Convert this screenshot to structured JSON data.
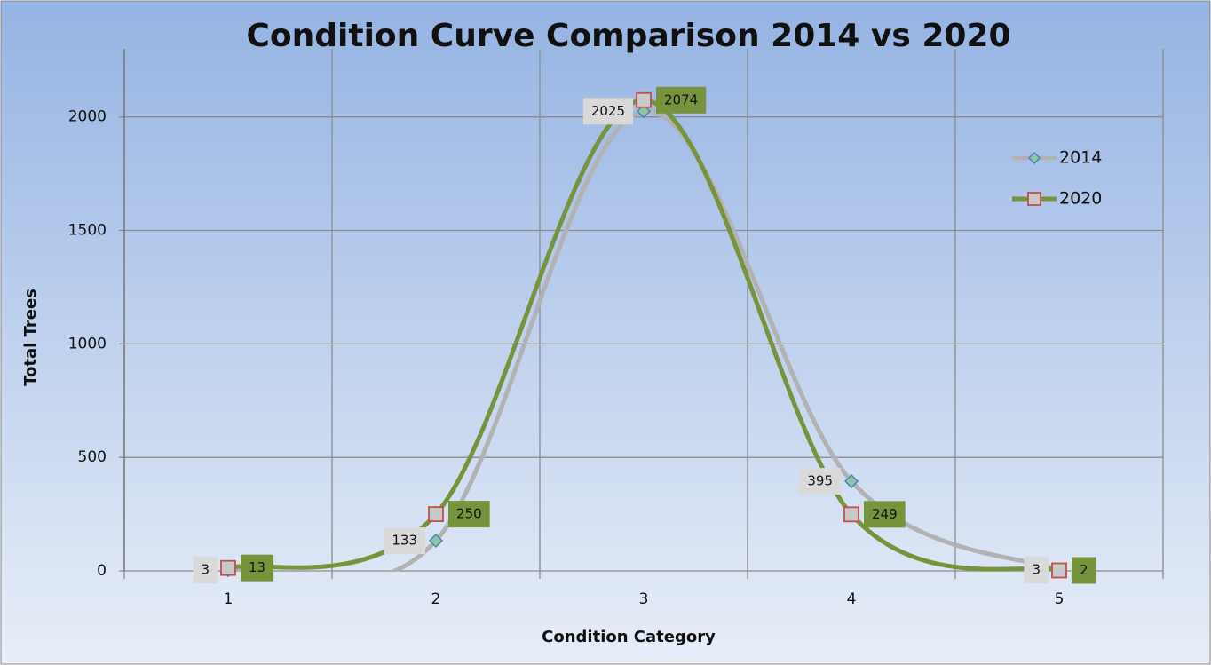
{
  "chart_data": {
    "type": "line",
    "title": "Condition Curve Comparison 2014 vs 2020",
    "x_label": "Condition Category",
    "y_label": "Total Trees",
    "categories": [
      "1",
      "2",
      "3",
      "4",
      "5"
    ],
    "series": [
      {
        "name": "2014",
        "color": "#b2b2b2",
        "marker": "diamond",
        "marker_fill": "#8fc7a0",
        "marker_stroke": "#4f81bd",
        "label_fill": "#d9d9d9",
        "label_side": "left",
        "values": [
          3,
          133,
          2025,
          395,
          3
        ]
      },
      {
        "name": "2020",
        "color": "#77933c",
        "marker": "square",
        "marker_fill": "#c9c9c9",
        "marker_stroke": "#c0504d",
        "label_fill": "#77933c",
        "label_side": "right",
        "values": [
          13,
          250,
          2074,
          249,
          2
        ]
      }
    ],
    "ylim": [
      0,
      2300
    ],
    "yticks": [
      0,
      500,
      1000,
      1500,
      2000
    ],
    "grid": true,
    "smooth": true,
    "legend": "right"
  }
}
